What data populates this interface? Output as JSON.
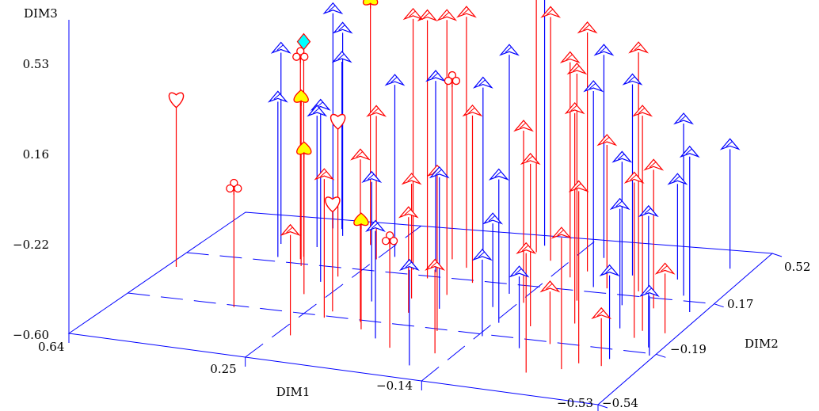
{
  "chart_data": {
    "type": "scatter",
    "subtype": "3d-needle",
    "title": "",
    "axes": {
      "x": {
        "label": "DIM1",
        "range": [
          -0.53,
          0.64
        ],
        "ticks": [
          "0.64",
          "0.25",
          "−0.14",
          "−0.53"
        ]
      },
      "y": {
        "label": "DIM2",
        "range": [
          -0.54,
          0.52
        ],
        "ticks": [
          "−0.54",
          "−0.19",
          "0.17",
          "0.52"
        ]
      },
      "z": {
        "label": "DIM3",
        "range": [
          -0.6,
          0.53
        ],
        "ticks": [
          "−0.60",
          "−0.22",
          "0.16",
          "0.53"
        ]
      }
    },
    "grid": true,
    "series": [
      {
        "symbol": "pyramid",
        "color": "#ff0000",
        "points": [
          [
            -0.05,
            0.4,
            0.65
          ],
          [
            0.02,
            0.05,
            0.55
          ],
          [
            0.1,
            0.15,
            0.48
          ],
          [
            0.05,
            0.25,
            0.45
          ],
          [
            0.15,
            0.2,
            0.45
          ],
          [
            -0.1,
            0.35,
            0.42
          ],
          [
            -0.2,
            0.3,
            0.4
          ],
          [
            -0.25,
            0.1,
            0.35
          ],
          [
            -0.35,
            0.2,
            0.4
          ],
          [
            -0.45,
            -0.05,
            0.3
          ],
          [
            -0.3,
            -0.05,
            0.28
          ],
          [
            0.12,
            -0.2,
            0.08
          ],
          [
            0.0,
            0.15,
            0.1
          ],
          [
            -0.15,
            0.05,
            0.12
          ],
          [
            -0.22,
            -0.1,
            0.08
          ],
          [
            -0.4,
            -0.3,
            0.12
          ],
          [
            -0.45,
            -0.1,
            0.05
          ],
          [
            -0.42,
            0.1,
            -0.02
          ],
          [
            0.2,
            -0.2,
            -0.02
          ],
          [
            0.08,
            0.0,
            -0.12
          ],
          [
            -0.05,
            -0.2,
            0.05
          ],
          [
            -0.28,
            0.2,
            0.0
          ],
          [
            -0.38,
            -0.35,
            -0.05
          ],
          [
            0.05,
            -0.1,
            -0.2
          ],
          [
            0.22,
            -0.35,
            -0.18
          ],
          [
            -0.1,
            -0.35,
            -0.25
          ],
          [
            -0.3,
            -0.2,
            -0.38
          ],
          [
            -0.5,
            -0.05,
            -0.35
          ],
          [
            -0.45,
            -0.3,
            -0.4
          ],
          [
            0.25,
            0.25,
            0.0
          ],
          [
            -0.18,
            0.25,
            0.3
          ],
          [
            -0.32,
            -0.4,
            -0.1
          ]
        ]
      },
      {
        "symbol": "pyramid",
        "color": "#0000ff",
        "points": [
          [
            0.48,
            0.3,
            0.2
          ],
          [
            0.42,
            0.45,
            0.3
          ],
          [
            0.38,
            0.4,
            0.25
          ],
          [
            0.22,
            0.28,
            0.12
          ],
          [
            0.05,
            0.35,
            0.1
          ],
          [
            -0.05,
            0.45,
            0.45
          ],
          [
            -0.1,
            0.1,
            0.4
          ],
          [
            -0.2,
            0.4,
            0.25
          ],
          [
            -0.25,
            0.2,
            0.22
          ],
          [
            -0.3,
            0.3,
            0.2
          ],
          [
            -0.45,
            0.2,
            0.12
          ],
          [
            -0.48,
            0.4,
            -0.1
          ],
          [
            -0.5,
            0.1,
            0.05
          ],
          [
            -0.4,
            -0.05,
            -0.1
          ],
          [
            -0.35,
            0.1,
            0.0
          ],
          [
            -0.45,
            -0.25,
            -0.25
          ],
          [
            -0.5,
            -0.15,
            -0.05
          ],
          [
            0.15,
            -0.05,
            -0.1
          ],
          [
            0.3,
            0.05,
            0.12
          ],
          [
            0.45,
            0.2,
            0.05
          ],
          [
            0.4,
            0.3,
            -0.05
          ],
          [
            0.1,
            0.2,
            0.2
          ],
          [
            0.0,
            -0.05,
            -0.05
          ],
          [
            -0.15,
            -0.1,
            0.0
          ],
          [
            0.05,
            -0.3,
            -0.15
          ],
          [
            -0.15,
            -0.2,
            -0.28
          ],
          [
            -0.4,
            0.3,
            -0.2
          ],
          [
            0.4,
            0.45,
            0.1
          ],
          [
            -0.1,
            0.0,
            -0.25
          ],
          [
            -0.25,
            -0.25,
            -0.3
          ],
          [
            -0.08,
            -0.45,
            -0.2
          ],
          [
            -0.52,
            -0.2,
            -0.35
          ]
        ]
      },
      {
        "symbol": "heart",
        "color": "#ff0000",
        "points": [
          [
            0.62,
            0.05,
            0.1
          ],
          [
            0.28,
            0.1,
            0.05
          ],
          [
            0.2,
            -0.15,
            -0.15
          ]
        ]
      },
      {
        "symbol": "club",
        "color": "#ff0000",
        "points": [
          [
            0.4,
            0.2,
            0.25
          ],
          [
            0.4,
            -0.2,
            -0.1
          ],
          [
            0.1,
            0.3,
            0.15
          ],
          [
            0.0,
            -0.35,
            -0.15
          ]
        ]
      },
      {
        "symbol": "spade",
        "color": "#ffff00",
        "points": [
          [
            0.3,
            0.35,
            0.42
          ],
          [
            0.38,
            0.15,
            0.1
          ],
          [
            0.3,
            -0.05,
            0.0
          ],
          [
            0.1,
            -0.25,
            -0.15
          ]
        ]
      },
      {
        "symbol": "diamond",
        "color": "#00ffff",
        "points": [
          [
            0.4,
            0.22,
            0.3
          ]
        ]
      }
    ]
  }
}
